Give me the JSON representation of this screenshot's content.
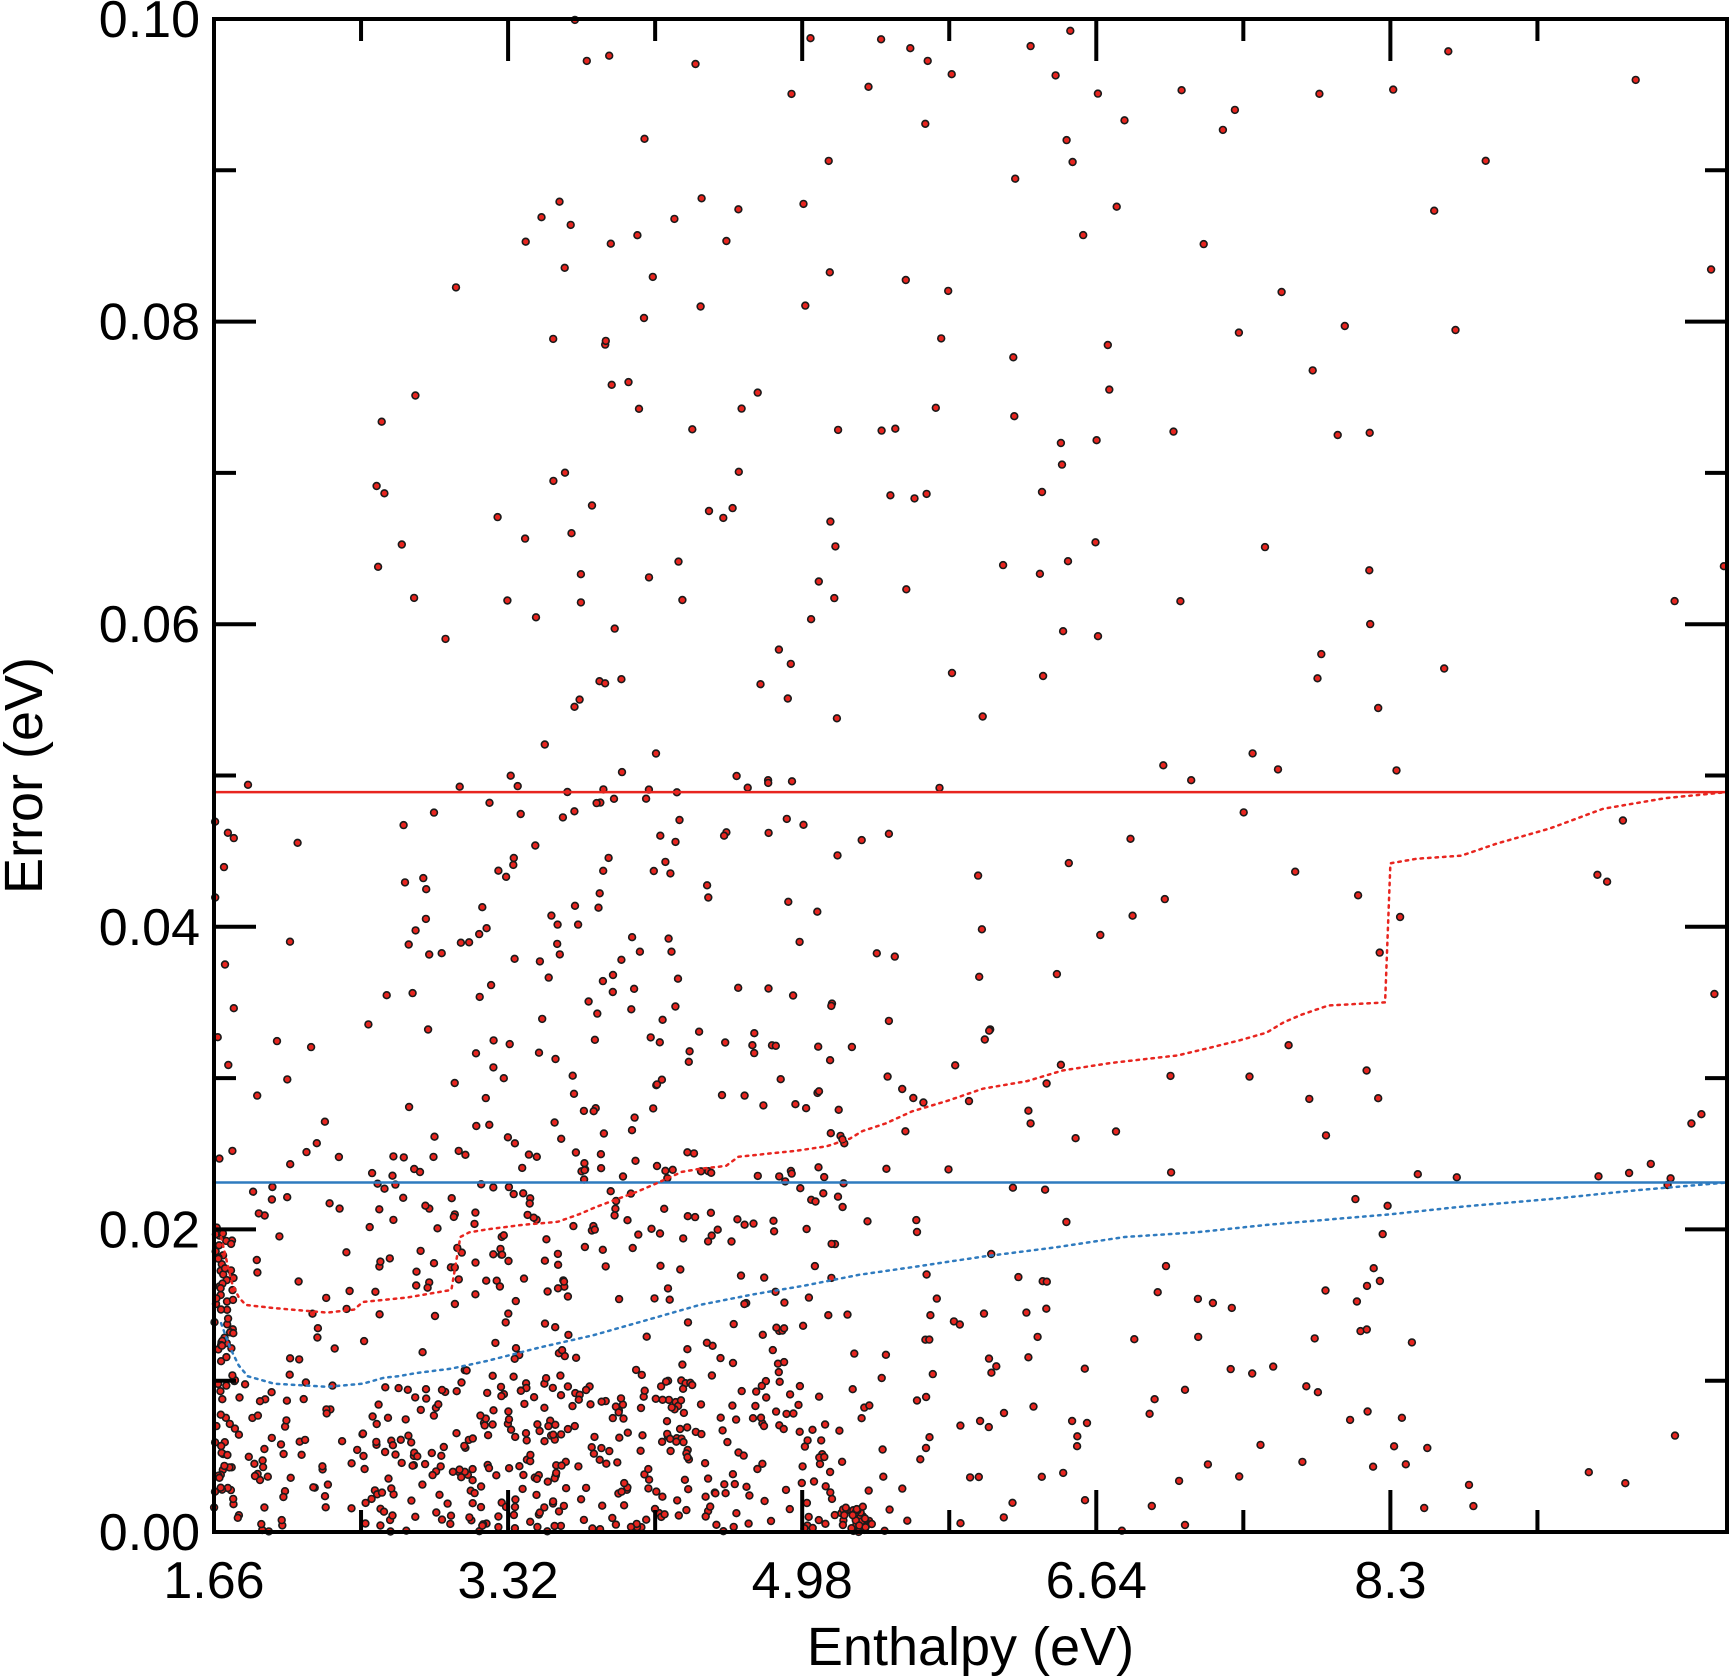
{
  "chart_data": {
    "type": "scatter",
    "title": "",
    "xlabel": "Enthalpy (eV)",
    "ylabel": "Error (eV)",
    "xlim": [
      1.66,
      10.2
    ],
    "ylim": [
      0.0,
      0.1
    ],
    "x_ticks": [
      1.66,
      3.32,
      4.98,
      6.64,
      8.3
    ],
    "x_tick_labels": [
      "1.66",
      "3.32",
      "4.98",
      "6.64",
      "8.3"
    ],
    "y_ticks": [
      0.0,
      0.02,
      0.04,
      0.06,
      0.08,
      0.1
    ],
    "y_tick_labels": [
      "0.00",
      "0.02",
      "0.04",
      "0.06",
      "0.08",
      "0.10"
    ],
    "grid": false,
    "legend": "none",
    "colors": {
      "points_fill": "#e8251f",
      "points_edge": "#1a1a1a",
      "red_series": "#e8251f",
      "blue_series": "#2f7bbf"
    },
    "horizontal_lines": [
      {
        "y": 0.0489,
        "color": "#e8251f"
      },
      {
        "y": 0.0231,
        "color": "#2f7bbf"
      }
    ],
    "red_curve": {
      "style": "dotted",
      "x": [
        1.7,
        1.76,
        1.8,
        1.84,
        2.0,
        2.3,
        2.45,
        2.5,
        2.75,
        2.85,
        3.0,
        3.05,
        3.1,
        3.2,
        3.4,
        3.6,
        3.72,
        3.82,
        4.05,
        4.15,
        4.3,
        4.4,
        4.55,
        4.62,
        4.78,
        4.95,
        5.12,
        5.25,
        5.32,
        5.45,
        5.6,
        5.8,
        6.0,
        6.25,
        6.45,
        6.72,
        7.1,
        7.28,
        7.45,
        7.6,
        7.7,
        7.8,
        7.95,
        8.27,
        8.3,
        8.45,
        8.7,
        8.9,
        9.2,
        9.5,
        9.85,
        10.2
      ],
      "y": [
        0.0195,
        0.0165,
        0.0155,
        0.015,
        0.0148,
        0.0145,
        0.0147,
        0.0152,
        0.0155,
        0.0157,
        0.016,
        0.0195,
        0.0198,
        0.02,
        0.0203,
        0.0205,
        0.021,
        0.0215,
        0.0225,
        0.023,
        0.0238,
        0.024,
        0.0242,
        0.0248,
        0.025,
        0.0252,
        0.0255,
        0.026,
        0.0265,
        0.027,
        0.0278,
        0.0285,
        0.0293,
        0.0298,
        0.0305,
        0.031,
        0.0315,
        0.032,
        0.0325,
        0.033,
        0.0337,
        0.0342,
        0.0348,
        0.035,
        0.0442,
        0.0445,
        0.0447,
        0.0455,
        0.0465,
        0.0478,
        0.0485,
        0.0489
      ]
    },
    "blue_curve": {
      "style": "dotted",
      "x": [
        1.7,
        1.75,
        1.8,
        1.85,
        2.0,
        2.3,
        2.5,
        2.62,
        2.7,
        2.8,
        3.0,
        3.2,
        3.5,
        3.8,
        4.1,
        4.4,
        4.7,
        5.0,
        5.3,
        5.6,
        6.0,
        6.4,
        6.8,
        7.2,
        7.6,
        8.0,
        8.3,
        8.7,
        9.2,
        9.7,
        10.2
      ],
      "y": [
        0.0138,
        0.0122,
        0.011,
        0.0103,
        0.0098,
        0.0096,
        0.0098,
        0.0102,
        0.0103,
        0.0105,
        0.0108,
        0.0113,
        0.0122,
        0.013,
        0.014,
        0.015,
        0.0157,
        0.0163,
        0.017,
        0.0175,
        0.0182,
        0.0188,
        0.0195,
        0.0198,
        0.0203,
        0.0207,
        0.021,
        0.0215,
        0.022,
        0.0226,
        0.0231
      ]
    },
    "point_density_bins": [
      {
        "x": [
          1.66,
          1.78
        ],
        "y": [
          0.0,
          0.02
        ],
        "count": 80
      },
      {
        "x": [
          1.66,
          1.78
        ],
        "y": [
          0.02,
          0.05
        ],
        "count": 12
      },
      {
        "x": [
          1.78,
          2.5
        ],
        "y": [
          0.0,
          0.01
        ],
        "count": 55
      },
      {
        "x": [
          1.78,
          2.5
        ],
        "y": [
          0.01,
          0.025
        ],
        "count": 25
      },
      {
        "x": [
          1.78,
          2.5
        ],
        "y": [
          0.025,
          0.05
        ],
        "count": 10
      },
      {
        "x": [
          2.5,
          3.3
        ],
        "y": [
          0.0,
          0.01
        ],
        "count": 110
      },
      {
        "x": [
          2.5,
          3.3
        ],
        "y": [
          0.01,
          0.025
        ],
        "count": 60
      },
      {
        "x": [
          2.5,
          3.3
        ],
        "y": [
          0.025,
          0.05
        ],
        "count": 35
      },
      {
        "x": [
          2.5,
          3.3
        ],
        "y": [
          0.05,
          0.1
        ],
        "count": 10
      },
      {
        "x": [
          3.3,
          4.3
        ],
        "y": [
          0.0,
          0.01
        ],
        "count": 150
      },
      {
        "x": [
          3.3,
          4.3
        ],
        "y": [
          0.01,
          0.025
        ],
        "count": 80
      },
      {
        "x": [
          3.3,
          4.3
        ],
        "y": [
          0.025,
          0.05
        ],
        "count": 75
      },
      {
        "x": [
          3.3,
          4.3
        ],
        "y": [
          0.05,
          0.1
        ],
        "count": 40
      },
      {
        "x": [
          4.3,
          5.2
        ],
        "y": [
          0.0,
          0.01
        ],
        "count": 95
      },
      {
        "x": [
          4.3,
          5.2
        ],
        "y": [
          0.01,
          0.025
        ],
        "count": 60
      },
      {
        "x": [
          4.3,
          5.2
        ],
        "y": [
          0.025,
          0.05
        ],
        "count": 45
      },
      {
        "x": [
          4.3,
          5.2
        ],
        "y": [
          0.05,
          0.1
        ],
        "count": 30
      },
      {
        "x": [
          5.2,
          5.45
        ],
        "y": [
          0.0,
          0.0015
        ],
        "count": 30
      },
      {
        "x": [
          5.2,
          6.6
        ],
        "y": [
          0.0,
          0.015
        ],
        "count": 55
      },
      {
        "x": [
          5.2,
          6.6
        ],
        "y": [
          0.015,
          0.04
        ],
        "count": 40
      },
      {
        "x": [
          5.2,
          6.6
        ],
        "y": [
          0.04,
          0.1
        ],
        "count": 40
      },
      {
        "x": [
          6.6,
          8.3
        ],
        "y": [
          0.0,
          0.02
        ],
        "count": 35
      },
      {
        "x": [
          6.6,
          8.3
        ],
        "y": [
          0.02,
          0.05
        ],
        "count": 20
      },
      {
        "x": [
          6.6,
          8.3
        ],
        "y": [
          0.05,
          0.1
        ],
        "count": 30
      },
      {
        "x": [
          8.3,
          10.2
        ],
        "y": [
          0.0,
          0.025
        ],
        "count": 18
      },
      {
        "x": [
          8.3,
          10.2
        ],
        "y": [
          0.025,
          0.1
        ],
        "count": 18
      }
    ]
  }
}
